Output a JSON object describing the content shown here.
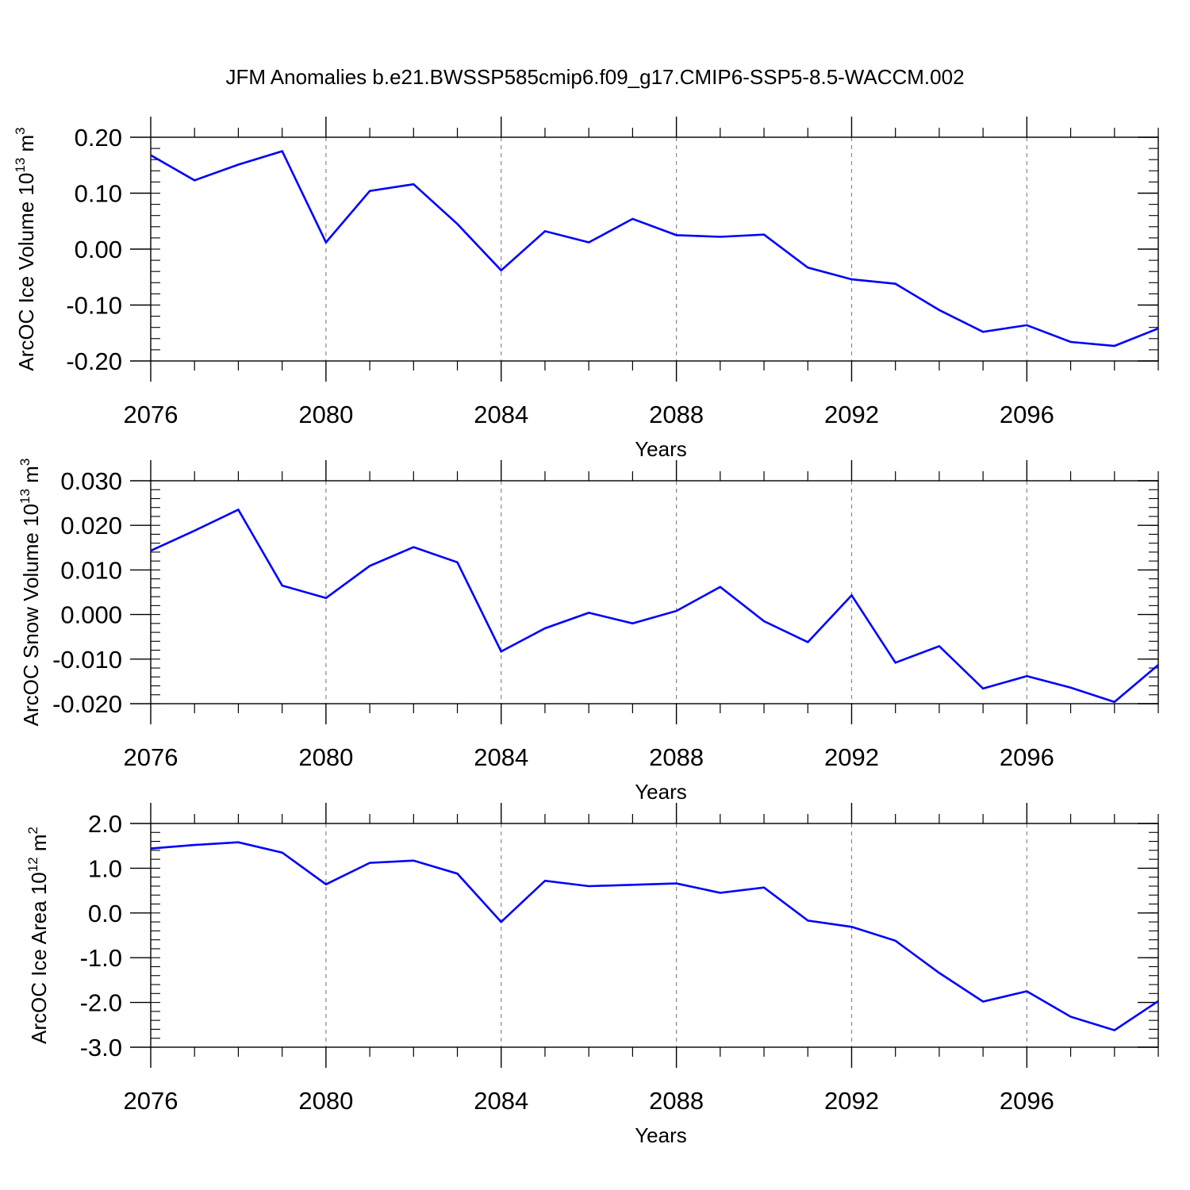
{
  "title": "JFM Anomalies b.e21.BWSSP585cmip6.f09_g17.CMIP6-SSP5-8.5-WACCM.002",
  "colors": {
    "line": "#0000ff",
    "axis": "#000000",
    "grid": "#888888",
    "background": "#ffffff"
  },
  "chart_data": [
    {
      "type": "line",
      "ylabel": "ArcOC Ice Volume 10",
      "ylabel_exponent": "13",
      "ylabel_unit": " m",
      "ylabel_unit_exponent": "3",
      "xlabel": "Years",
      "xlim": [
        2076,
        2099
      ],
      "ylim": [
        -0.2,
        0.2
      ],
      "x_ticks": [
        2076,
        2080,
        2084,
        2088,
        2092,
        2096
      ],
      "x_tick_labels": [
        "2076",
        "2080",
        "2084",
        "2088",
        "2092",
        "2096"
      ],
      "y_ticks": [
        -0.2,
        -0.1,
        0.0,
        0.1,
        0.2
      ],
      "y_tick_labels": [
        "-0.20",
        "-0.10",
        "0.00",
        "0.10",
        "0.20"
      ],
      "y_minor_step": 0.02,
      "grid": "vertical dashed at major x ticks",
      "x": [
        2076,
        2077,
        2078,
        2079,
        2080,
        2081,
        2082,
        2083,
        2084,
        2085,
        2086,
        2087,
        2088,
        2089,
        2090,
        2091,
        2092,
        2093,
        2094,
        2095,
        2096,
        2097,
        2098,
        2099
      ],
      "values": [
        0.168,
        0.123,
        0.151,
        0.175,
        0.012,
        0.104,
        0.116,
        0.045,
        -0.038,
        0.032,
        0.012,
        0.054,
        0.025,
        0.022,
        0.026,
        -0.033,
        -0.054,
        -0.062,
        -0.109,
        -0.148,
        -0.136,
        -0.166,
        -0.173,
        -0.142
      ]
    },
    {
      "type": "line",
      "ylabel": "ArcOC Snow Volume 10",
      "ylabel_exponent": "13",
      "ylabel_unit": " m",
      "ylabel_unit_exponent": "3",
      "xlabel": "Years",
      "xlim": [
        2076,
        2099
      ],
      "ylim": [
        -0.02,
        0.03
      ],
      "x_ticks": [
        2076,
        2080,
        2084,
        2088,
        2092,
        2096
      ],
      "x_tick_labels": [
        "2076",
        "2080",
        "2084",
        "2088",
        "2092",
        "2096"
      ],
      "y_ticks": [
        -0.02,
        -0.01,
        0.0,
        0.01,
        0.02,
        0.03
      ],
      "y_tick_labels": [
        "-0.020",
        "-0.010",
        "0.000",
        "0.010",
        "0.020",
        "0.030"
      ],
      "y_minor_step": 0.002,
      "grid": "vertical dashed at major x ticks",
      "x": [
        2076,
        2077,
        2078,
        2079,
        2080,
        2081,
        2082,
        2083,
        2084,
        2085,
        2086,
        2087,
        2088,
        2089,
        2090,
        2091,
        2092,
        2093,
        2094,
        2095,
        2096,
        2097,
        2098,
        2099
      ],
      "values": [
        0.0143,
        0.0188,
        0.0235,
        0.0065,
        0.0037,
        0.0109,
        0.0151,
        0.0117,
        -0.0083,
        -0.0031,
        0.0004,
        -0.002,
        0.0008,
        0.0062,
        -0.0015,
        -0.0062,
        0.0043,
        -0.0108,
        -0.0071,
        -0.0166,
        -0.0138,
        -0.0164,
        -0.0196,
        -0.0113
      ]
    },
    {
      "type": "line",
      "ylabel": "ArcOC Ice Area 10",
      "ylabel_exponent": "12",
      "ylabel_unit": " m",
      "ylabel_unit_exponent": "2",
      "xlabel": "Years",
      "xlim": [
        2076,
        2099
      ],
      "ylim": [
        -3.0,
        2.0
      ],
      "x_ticks": [
        2076,
        2080,
        2084,
        2088,
        2092,
        2096
      ],
      "x_tick_labels": [
        "2076",
        "2080",
        "2084",
        "2088",
        "2092",
        "2096"
      ],
      "y_ticks": [
        -3.0,
        -2.0,
        -1.0,
        0.0,
        1.0,
        2.0
      ],
      "y_tick_labels": [
        "-3.0",
        "-2.0",
        "-1.0",
        "0.0",
        "1.0",
        "2.0"
      ],
      "y_minor_step": 0.2,
      "grid": "vertical dashed at major x ticks",
      "x": [
        2076,
        2077,
        2078,
        2079,
        2080,
        2081,
        2082,
        2083,
        2084,
        2085,
        2086,
        2087,
        2088,
        2089,
        2090,
        2091,
        2092,
        2093,
        2094,
        2095,
        2096,
        2097,
        2098,
        2099
      ],
      "values": [
        1.44,
        1.52,
        1.58,
        1.35,
        0.64,
        1.12,
        1.17,
        0.88,
        -0.2,
        0.72,
        0.6,
        0.63,
        0.66,
        0.45,
        0.57,
        -0.17,
        -0.31,
        -0.62,
        -1.34,
        -1.98,
        -1.75,
        -2.32,
        -2.62,
        -1.97
      ]
    }
  ]
}
